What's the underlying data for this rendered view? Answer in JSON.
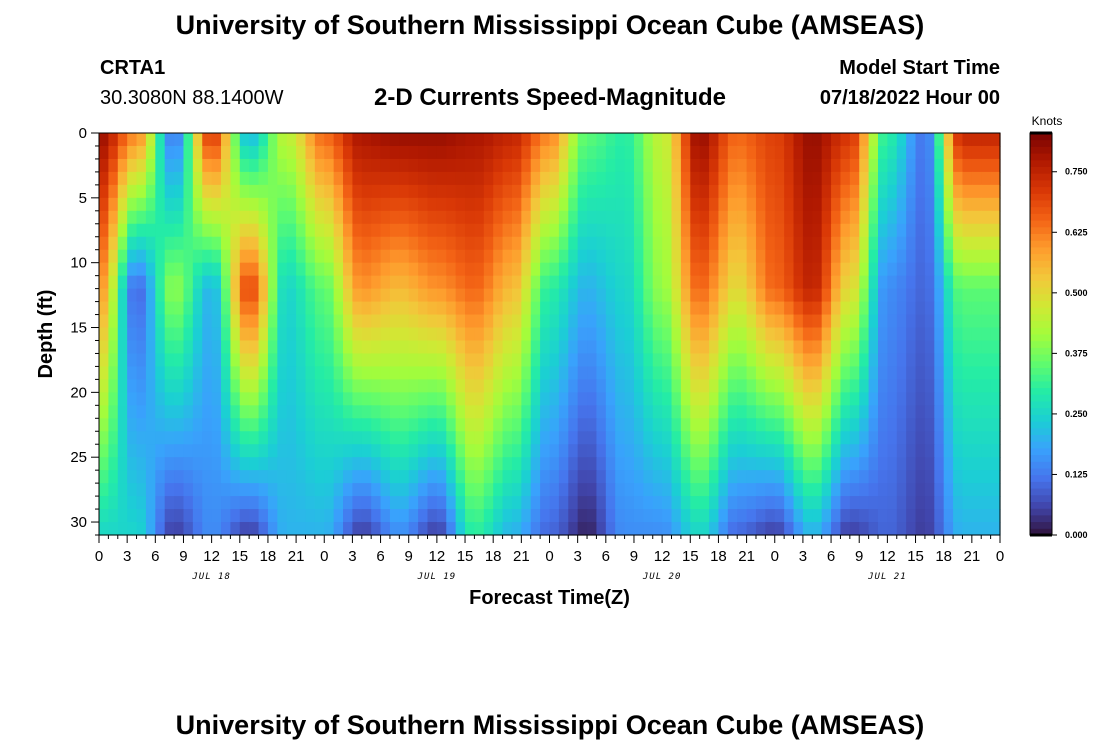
{
  "header": {
    "title_top": "University of Southern Mississippi Ocean Cube (AMSEAS)",
    "title_bottom": "University of Southern Mississippi Ocean Cube (AMSEAS)",
    "station": "CRTA1",
    "coords": "30.3080N  88.1400W",
    "plot_title": "2-D Currents Speed-Magnitude",
    "model_start_label": "Model Start Time",
    "model_start_value": "07/18/2022 Hour 00"
  },
  "chart_data": {
    "type": "heatmap",
    "title": "2-D Currents Speed-Magnitude",
    "xlabel": "Forecast Time(Z)",
    "ylabel": "Depth (ft)",
    "x_unit": "forecast hour from 07/18/2022 00Z",
    "xlim": [
      0,
      96
    ],
    "ylim": [
      31,
      0
    ],
    "x_tick_labels": [
      "0",
      "3",
      "6",
      "9",
      "12",
      "15",
      "18",
      "21",
      "0",
      "3",
      "6",
      "9",
      "12",
      "15",
      "18",
      "21",
      "0",
      "3",
      "6",
      "9",
      "12",
      "15",
      "18",
      "21",
      "0",
      "3",
      "6",
      "9",
      "12",
      "15",
      "18",
      "21",
      "0"
    ],
    "y_tick_values": [
      0,
      5,
      10,
      15,
      20,
      25,
      30
    ],
    "y_tick_labels": [
      "0",
      "5",
      "10",
      "15",
      "20",
      "25",
      "30"
    ],
    "day_labels": [
      {
        "text": "JUL 18",
        "hour": 12
      },
      {
        "text": "JUL 19",
        "hour": 36
      },
      {
        "text": "JUL 20",
        "hour": 60
      },
      {
        "text": "JUL 21",
        "hour": 84
      }
    ],
    "colorbar": {
      "unit": "Knots",
      "min": 0.0,
      "max": 0.83,
      "ticks": [
        {
          "value": 0.0,
          "label": "0.000"
        },
        {
          "value": 0.125,
          "label": "0.125"
        },
        {
          "value": 0.25,
          "label": "0.250"
        },
        {
          "value": 0.375,
          "label": "0.375"
        },
        {
          "value": 0.5,
          "label": "0.500"
        },
        {
          "value": 0.625,
          "label": "0.625"
        },
        {
          "value": 0.75,
          "label": "0.750"
        }
      ],
      "colors": [
        "#30123b",
        "#4145ab",
        "#4675ed",
        "#39a2fc",
        "#1bcfd4",
        "#24eca6",
        "#61fc6c",
        "#a4fc3b",
        "#d1e834",
        "#f3c63a",
        "#fe9b2d",
        "#f36315",
        "#d93806",
        "#b11901",
        "#7a0402"
      ]
    },
    "surface_speed": [
      0.8,
      0.62,
      0.12,
      0.72,
      0.2,
      0.45,
      0.65,
      0.78,
      0.8,
      0.8,
      0.78,
      0.75,
      0.62,
      0.35,
      0.3,
      0.45,
      0.8,
      0.65,
      0.7,
      0.8,
      0.72,
      0.3,
      0.12,
      0.75
    ],
    "mid_speed": [
      0.6,
      0.1,
      0.4,
      0.2,
      0.7,
      0.25,
      0.35,
      0.6,
      0.55,
      0.6,
      0.65,
      0.55,
      0.3,
      0.2,
      0.25,
      0.4,
      0.65,
      0.5,
      0.65,
      0.75,
      0.5,
      0.15,
      0.1,
      0.35
    ],
    "deep_speed": [
      0.25,
      0.25,
      0.05,
      0.15,
      0.05,
      0.2,
      0.2,
      0.05,
      0.15,
      0.05,
      0.3,
      0.2,
      0.1,
      0.02,
      0.15,
      0.15,
      0.25,
      0.1,
      0.05,
      0.2,
      0.05,
      0.1,
      0.05,
      0.2
    ],
    "profile_depths_ft": [
      0,
      12,
      31
    ],
    "profile_interval_hours": 4
  }
}
